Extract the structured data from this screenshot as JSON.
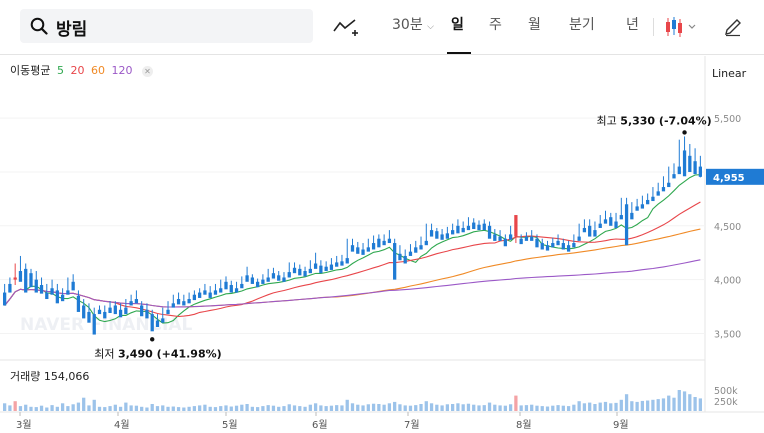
{
  "search": {
    "query": "방림"
  },
  "toolbar": {
    "interval": "30분",
    "tabs": [
      "일",
      "주",
      "월",
      "분기",
      "년"
    ],
    "active_tab": "일"
  },
  "indicators": {
    "ma_label": "이동평균",
    "ma_periods": [
      {
        "label": "5",
        "color": "#2fa84f"
      },
      {
        "label": "20",
        "color": "#e8464a"
      },
      {
        "label": "60",
        "color": "#f08a26"
      },
      {
        "label": "120",
        "color": "#9b59c7"
      }
    ],
    "scale_mode": "Linear",
    "volume_label": "거래량",
    "volume_value": "154,066"
  },
  "chart_data": {
    "type": "candlestick",
    "watermark": "NAVER FINANCIAL",
    "up_color": "#e8464a",
    "down_color": "#1f7bd4",
    "price_axis": {
      "ticks": [
        3500,
        4000,
        4500,
        5000,
        5500
      ],
      "range": [
        3300,
        5780
      ]
    },
    "volume_axis": {
      "ticks": [
        "500k",
        "250k"
      ]
    },
    "current_price": "4,955",
    "high_marker": {
      "label": "최고",
      "value": "5,330",
      "change": "(-7.04%)",
      "price": 5330
    },
    "low_marker": {
      "label": "최저",
      "value": "3,490",
      "change": "(+41.98%)",
      "price": 3490
    },
    "months": [
      "3월",
      "4월",
      "5월",
      "6월",
      "7월",
      "8월",
      "9월"
    ],
    "candles": [
      [
        3880,
        3960,
        3800,
        3760
      ],
      [
        3960,
        4020,
        3920,
        3880
      ],
      [
        4000,
        4150,
        3950,
        4020
      ],
      [
        4080,
        4220,
        4050,
        3980
      ],
      [
        4100,
        4150,
        3900,
        3880
      ],
      [
        4060,
        4100,
        3950,
        3930
      ],
      [
        4000,
        4080,
        3920,
        3880
      ],
      [
        3950,
        4020,
        3900,
        3870
      ],
      [
        3880,
        3960,
        3860,
        3820
      ],
      [
        3920,
        4000,
        3900,
        3860
      ],
      [
        3900,
        3960,
        3800,
        3780
      ],
      [
        3860,
        3920,
        3820,
        3800
      ],
      [
        3900,
        4020,
        3880,
        3860
      ],
      [
        3980,
        4050,
        3960,
        3900
      ],
      [
        3850,
        3900,
        3790,
        3700
      ],
      [
        3760,
        3820,
        3700,
        3640
      ],
      [
        3700,
        3780,
        3660,
        3600
      ],
      [
        3680,
        3740,
        3650,
        3490
      ],
      [
        3720,
        3760,
        3700,
        3680
      ],
      [
        3700,
        3760,
        3660,
        3640
      ],
      [
        3740,
        3800,
        3720,
        3690
      ],
      [
        3760,
        3800,
        3700,
        3680
      ],
      [
        3720,
        3780,
        3680,
        3650
      ],
      [
        3740,
        3820,
        3720,
        3680
      ],
      [
        3800,
        3860,
        3780,
        3760
      ],
      [
        3820,
        3900,
        3800,
        3780
      ],
      [
        3760,
        3800,
        3700,
        3660
      ],
      [
        3720,
        3780,
        3660,
        3640
      ],
      [
        3680,
        3720,
        3560,
        3520
      ],
      [
        3620,
        3680,
        3580,
        3560
      ],
      [
        3640,
        3740,
        3620,
        3600
      ],
      [
        3720,
        3800,
        3700,
        3680
      ],
      [
        3780,
        3860,
        3760,
        3740
      ],
      [
        3820,
        3880,
        3790,
        3770
      ],
      [
        3800,
        3860,
        3780,
        3760
      ],
      [
        3820,
        3880,
        3800,
        3780
      ],
      [
        3860,
        3900,
        3830,
        3810
      ],
      [
        3880,
        3920,
        3850,
        3830
      ],
      [
        3900,
        3960,
        3880,
        3860
      ],
      [
        3880,
        3940,
        3850,
        3830
      ],
      [
        3900,
        3960,
        3880,
        3860
      ],
      [
        3920,
        4000,
        3900,
        3880
      ],
      [
        3980,
        4030,
        3930,
        3910
      ],
      [
        3950,
        3990,
        3900,
        3880
      ],
      [
        3920,
        3980,
        3900,
        3880
      ],
      [
        3960,
        4030,
        3940,
        3920
      ],
      [
        4040,
        4120,
        4000,
        3980
      ],
      [
        4020,
        4050,
        3980,
        3960
      ],
      [
        3980,
        4010,
        3950,
        3930
      ],
      [
        4000,
        4050,
        3980,
        3960
      ],
      [
        4020,
        4100,
        4000,
        3980
      ],
      [
        4060,
        4110,
        4030,
        4010
      ],
      [
        4040,
        4080,
        4010,
        3990
      ],
      [
        4020,
        4070,
        4000,
        3980
      ],
      [
        4070,
        4160,
        4040,
        4020
      ],
      [
        4110,
        4160,
        4080,
        4060
      ],
      [
        4100,
        4140,
        4060,
        4040
      ],
      [
        4080,
        4120,
        4050,
        4030
      ],
      [
        4100,
        4180,
        4080,
        4060
      ],
      [
        4150,
        4250,
        4120,
        4100
      ],
      [
        4130,
        4180,
        4080,
        4060
      ],
      [
        4120,
        4170,
        4100,
        4080
      ],
      [
        4140,
        4200,
        4110,
        4090
      ],
      [
        4160,
        4220,
        4140,
        4120
      ],
      [
        4170,
        4230,
        4150,
        4130
      ],
      [
        4200,
        4380,
        4170,
        4150
      ],
      [
        4320,
        4380,
        4280,
        4260
      ],
      [
        4300,
        4350,
        4260,
        4240
      ],
      [
        4280,
        4340,
        4250,
        4230
      ],
      [
        4300,
        4380,
        4280,
        4260
      ],
      [
        4340,
        4410,
        4300,
        4280
      ],
      [
        4380,
        4420,
        4320,
        4300
      ],
      [
        4360,
        4420,
        4340,
        4320
      ],
      [
        4380,
        4460,
        4360,
        4340
      ],
      [
        4340,
        4380,
        4220,
        4000
      ],
      [
        4240,
        4320,
        4200,
        4180
      ],
      [
        4220,
        4280,
        4170,
        4150
      ],
      [
        4260,
        4330,
        4240,
        4220
      ],
      [
        4300,
        4360,
        4270,
        4250
      ],
      [
        4320,
        4400,
        4300,
        4280
      ],
      [
        4360,
        4520,
        4340,
        4320
      ],
      [
        4460,
        4520,
        4420,
        4400
      ],
      [
        4450,
        4480,
        4400,
        4380
      ],
      [
        4420,
        4470,
        4390,
        4370
      ],
      [
        4430,
        4490,
        4400,
        4380
      ],
      [
        4460,
        4520,
        4440,
        4420
      ],
      [
        4500,
        4560,
        4450,
        4430
      ],
      [
        4480,
        4540,
        4460,
        4440
      ],
      [
        4500,
        4580,
        4480,
        4460
      ],
      [
        4530,
        4570,
        4490,
        4470
      ],
      [
        4510,
        4550,
        4480,
        4460
      ],
      [
        4520,
        4560,
        4480,
        4460
      ],
      [
        4500,
        4540,
        4400,
        4380
      ],
      [
        4420,
        4470,
        4380,
        4360
      ],
      [
        4400,
        4460,
        4380,
        4360
      ],
      [
        4380,
        4420,
        4330,
        4310
      ],
      [
        4420,
        4500,
        4390,
        4370
      ],
      [
        4400,
        4420,
        4340,
        4600
      ],
      [
        4380,
        4420,
        4350,
        4330
      ],
      [
        4400,
        4440,
        4380,
        4360
      ],
      [
        4400,
        4460,
        4380,
        4360
      ],
      [
        4380,
        4420,
        4320,
        4300
      ],
      [
        4340,
        4380,
        4300,
        4280
      ],
      [
        4320,
        4360,
        4290,
        4270
      ],
      [
        4340,
        4390,
        4320,
        4300
      ],
      [
        4360,
        4420,
        4340,
        4320
      ],
      [
        4340,
        4380,
        4300,
        4280
      ],
      [
        4320,
        4360,
        4280,
        4260
      ],
      [
        4340,
        4420,
        4320,
        4300
      ],
      [
        4400,
        4520,
        4380,
        4360
      ],
      [
        4480,
        4560,
        4460,
        4440
      ],
      [
        4500,
        4560,
        4420,
        4400
      ],
      [
        4460,
        4540,
        4420,
        4400
      ],
      [
        4520,
        4600,
        4500,
        4480
      ],
      [
        4560,
        4640,
        4540,
        4520
      ],
      [
        4580,
        4620,
        4520,
        4500
      ],
      [
        4540,
        4620,
        4500,
        4480
      ],
      [
        4600,
        4760,
        4580,
        4560
      ],
      [
        4700,
        4760,
        4600,
        4320
      ],
      [
        4620,
        4720,
        4580,
        4560
      ],
      [
        4680,
        4750,
        4660,
        4640
      ],
      [
        4700,
        4780,
        4680,
        4660
      ],
      [
        4740,
        4800,
        4720,
        4700
      ],
      [
        4770,
        4860,
        4750,
        4730
      ],
      [
        4820,
        4900,
        4800,
        4780
      ],
      [
        4860,
        4960,
        4840,
        4820
      ],
      [
        4900,
        5050,
        4880,
        4860
      ],
      [
        4980,
        5080,
        4960,
        4940
      ],
      [
        5050,
        5300,
        5000,
        4980
      ],
      [
        5200,
        5330,
        4980,
        4960
      ],
      [
        5150,
        5260,
        5020,
        5000
      ],
      [
        5100,
        5220,
        5000,
        4980
      ],
      [
        5050,
        5150,
        4950,
        4955
      ]
    ],
    "volume": [
      55,
      40,
      70,
      35,
      45,
      30,
      28,
      38,
      25,
      42,
      30,
      55,
      35,
      48,
      60,
      95,
      40,
      80,
      30,
      28,
      35,
      45,
      30,
      60,
      40,
      38,
      30,
      25,
      50,
      35,
      40,
      30,
      32,
      28,
      25,
      30,
      35,
      40,
      45,
      30,
      28,
      35,
      40,
      32,
      38,
      45,
      50,
      30,
      28,
      35,
      42,
      38,
      30,
      35,
      48,
      40,
      35,
      30,
      45,
      55,
      40,
      35,
      38,
      42,
      40,
      80,
      55,
      45,
      40,
      48,
      52,
      50,
      45,
      55,
      65,
      48,
      40,
      38,
      42,
      50,
      70,
      55,
      45,
      40,
      48,
      50,
      55,
      48,
      52,
      45,
      40,
      42,
      60,
      45,
      40,
      38,
      48,
      110,
      40,
      42,
      45,
      38,
      35,
      32,
      38,
      42,
      38,
      35,
      45,
      70,
      55,
      60,
      50,
      60,
      65,
      55,
      58,
      80,
      120,
      70,
      65,
      72,
      75,
      80,
      85,
      90,
      110,
      95,
      150,
      140,
      120,
      100,
      90
    ]
  }
}
